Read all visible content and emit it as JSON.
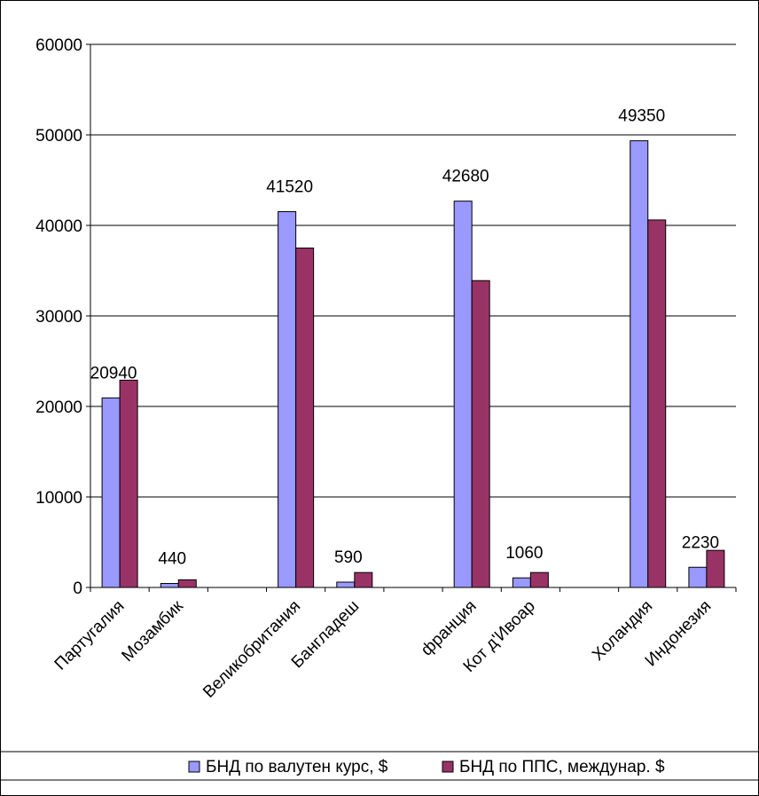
{
  "chart_data": {
    "type": "bar",
    "categories": [
      "Партугалия",
      "Мозамбик",
      "",
      "Великобритания",
      "Бангладеш",
      "",
      "франция",
      "Кот д'Ивоар",
      "",
      "Холандия",
      "Индонезия"
    ],
    "series": [
      {
        "name": "БНД по валутен курс, $",
        "color": "#9999ff",
        "values": [
          20940,
          440,
          null,
          41520,
          590,
          null,
          42680,
          1060,
          null,
          49350,
          2230
        ]
      },
      {
        "name": "БНД по ППС, междунар. $",
        "color": "#993366",
        "values": [
          22900,
          850,
          null,
          37500,
          1650,
          null,
          33900,
          1650,
          null,
          40600,
          4100
        ]
      }
    ],
    "data_labels": [
      "20940",
      "440",
      "",
      "41520",
      "590",
      "",
      "42680",
      "1060",
      "",
      "49350",
      "2230"
    ],
    "yticks": [
      "0",
      "10000",
      "20000",
      "30000",
      "40000",
      "50000",
      "60000"
    ],
    "ylim": [
      0,
      60000
    ],
    "grid": true,
    "legend": "bottom"
  }
}
